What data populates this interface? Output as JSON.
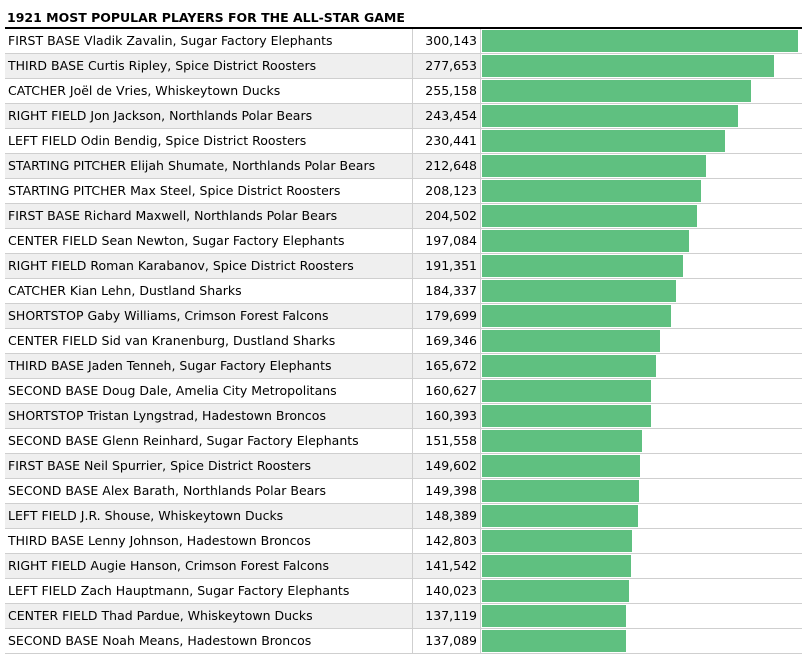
{
  "title": "1921 MOST POPULAR PLAYERS FOR THE ALL-STAR GAME",
  "colors": {
    "bar": "#5fc080",
    "alt_row": "#efefef",
    "grid": "#cfcfcf"
  },
  "chart_data": {
    "type": "bar",
    "orientation": "horizontal",
    "title": "1921 MOST POPULAR PLAYERS FOR THE ALL-STAR GAME",
    "xlim": [
      0,
      300143
    ],
    "categories": [
      "FIRST BASE Vladik Zavalin, Sugar Factory Elephants",
      "THIRD BASE Curtis Ripley, Spice District Roosters",
      "CATCHER Joël de Vries, Whiskeytown Ducks",
      "RIGHT FIELD Jon Jackson, Northlands Polar Bears",
      "LEFT FIELD Odin Bendig, Spice District Roosters",
      "STARTING PITCHER Elijah Shumate, Northlands Polar Bears",
      "STARTING PITCHER Max Steel, Spice District Roosters",
      "FIRST BASE Richard Maxwell, Northlands Polar Bears",
      "CENTER FIELD Sean Newton, Sugar Factory Elephants",
      "RIGHT FIELD Roman Karabanov, Spice District Roosters",
      "CATCHER Kian Lehn, Dustland Sharks",
      "SHORTSTOP Gaby Williams, Crimson Forest Falcons",
      "CENTER FIELD Sid van Kranenburg, Dustland Sharks",
      "THIRD BASE Jaden Tenneh, Sugar Factory Elephants",
      "SECOND BASE Doug Dale, Amelia City Metropolitans",
      "SHORTSTOP Tristan Lyngstrad, Hadestown Broncos",
      "SECOND BASE Glenn Reinhard, Sugar Factory Elephants",
      "FIRST BASE Neil Spurrier, Spice District Roosters",
      "SECOND BASE Alex Barath, Northlands Polar Bears",
      "LEFT FIELD J.R. Shouse, Whiskeytown Ducks",
      "THIRD BASE Lenny Johnson, Hadestown Broncos",
      "RIGHT FIELD Augie Hanson, Crimson Forest Falcons",
      "LEFT FIELD Zach Hauptmann, Sugar Factory Elephants",
      "CENTER FIELD Thad Pardue, Whiskeytown Ducks",
      "SECOND BASE Noah Means, Hadestown Broncos"
    ],
    "values": [
      300143,
      277653,
      255158,
      243454,
      230441,
      212648,
      208123,
      204502,
      197084,
      191351,
      184337,
      179699,
      169346,
      165672,
      160627,
      160393,
      151558,
      149602,
      149398,
      148389,
      142803,
      141542,
      140023,
      137119,
      137089
    ],
    "value_labels": [
      "300,143",
      "277,653",
      "255,158",
      "243,454",
      "230,441",
      "212,648",
      "208,123",
      "204,502",
      "197,084",
      "191,351",
      "184,337",
      "179,699",
      "169,346",
      "165,672",
      "160,627",
      "160,393",
      "151,558",
      "149,602",
      "149,398",
      "148,389",
      "142,803",
      "141,542",
      "140,023",
      "137,119",
      "137,089"
    ]
  }
}
